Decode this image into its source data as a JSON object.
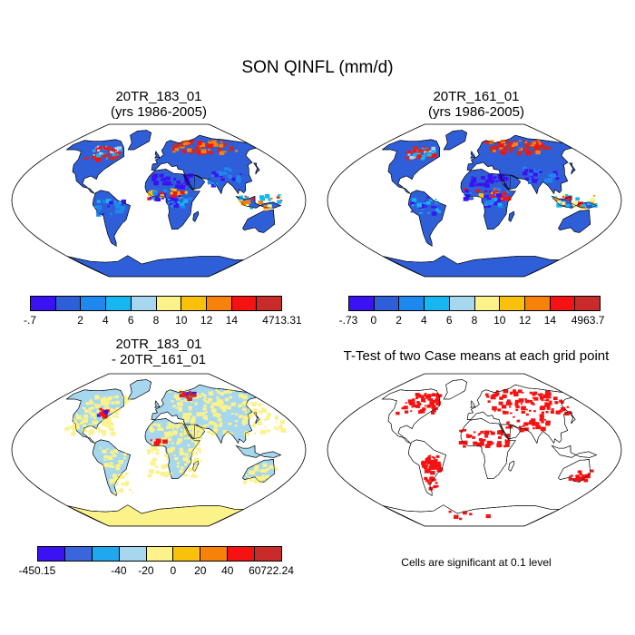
{
  "figure": {
    "title": "SON QINFL (mm/d)"
  },
  "panels": {
    "top_left": {
      "title_line1": "20TR_183_01",
      "title_line2": "(yrs 1986-2005)",
      "colorbar": {
        "colors": [
          "#3b12f2",
          "#2f5fd8",
          "#1e88ee",
          "#17b6f0",
          "#a6d7ef",
          "#fbf28a",
          "#f9c10c",
          "#f7820a",
          "#f51212",
          "#c92b2b"
        ],
        "labels": [
          "-.7",
          "2",
          "4",
          "6",
          "8",
          "10",
          "12",
          "14",
          "4713.31"
        ]
      }
    },
    "top_right": {
      "title_line1": "20TR_161_01",
      "title_line2": "(yrs 1986-2005)",
      "colorbar": {
        "colors": [
          "#3b12f2",
          "#2f5fd8",
          "#1e88ee",
          "#17b6f0",
          "#a6d7ef",
          "#fbf28a",
          "#f9c10c",
          "#f7820a",
          "#f51212",
          "#c92b2b"
        ],
        "labels": [
          "-.73",
          "0",
          "2",
          "4",
          "6",
          "8",
          "10",
          "12",
          "14",
          "4963.7"
        ]
      }
    },
    "bottom_left": {
      "title_line1": "20TR_183_01",
      "title_line2": "- 20TR_161_01",
      "colorbar": {
        "colors": [
          "#3b12f2",
          "#3a66dd",
          "#20a7ee",
          "#a6d7ef",
          "#fbf28a",
          "#f9c10c",
          "#f7820a",
          "#f51212",
          "#c92b2b"
        ],
        "labels": [
          "-450.15",
          "-40",
          "-20",
          "0",
          "20",
          "40",
          "60",
          "722.24"
        ]
      }
    },
    "bottom_right": {
      "title": "T-Test of two Case means at each grid point",
      "note": "Cells are significant at 0.1 level"
    }
  },
  "map_colors": {
    "ocean": "#ffffff",
    "land_top": "#2f5fd8",
    "land_diff": "#a6d7ef",
    "land_diff_alt": "#fbf28a",
    "significant": "#f51212",
    "coast": "#000000"
  }
}
